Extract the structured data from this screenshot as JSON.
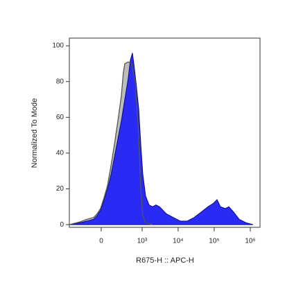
{
  "chart_data": {
    "type": "histogram-overlay",
    "xlabel": "R675-H :: APC-H",
    "ylabel": "Normalized To Mode",
    "xlim": [
      -557,
      1860000
    ],
    "ylim": [
      -1.5,
      104.3
    ],
    "xticks": [
      0,
      {
        "value": 1000,
        "label": "10³"
      },
      {
        "value": 10000,
        "label": "10⁴"
      },
      {
        "value": 100000,
        "label": "10⁵"
      },
      {
        "value": 1000000,
        "label": "10⁶"
      }
    ],
    "yticks": [
      0,
      20,
      40,
      60,
      80,
      100
    ],
    "series": [
      {
        "color": "#bdbdbd",
        "line_color": "#555555",
        "x": [
          -557,
          -273,
          -158,
          -75,
          -40,
          -6.5,
          26,
          61,
          98,
          140,
          188,
          246,
          285,
          317,
          403,
          508,
          638,
          800,
          914,
          1046,
          1252,
          1951
        ],
        "values": [
          0,
          1.5,
          3,
          4,
          6,
          9,
          15,
          22,
          33,
          45,
          58,
          72,
          85,
          90,
          91,
          90,
          80,
          50,
          20,
          5,
          1,
          0
        ]
      },
      {
        "color": "#2a2af5",
        "line_color": "#0a0a8a",
        "x": [
          -557,
          -273,
          -158,
          -75,
          -40,
          -6.5,
          26,
          61,
          98,
          140,
          188,
          246,
          317,
          403,
          463,
          531,
          583,
          667,
          800,
          914,
          1046,
          1252,
          1561,
          1951,
          2437,
          3045,
          4740,
          7380,
          11470,
          17870,
          27830,
          43300,
          67400,
          96000,
          119900,
          149500,
          203700,
          254200,
          346800,
          494200,
          768400,
          1197000
        ],
        "values": [
          0,
          1,
          2,
          3,
          5,
          8,
          14,
          20,
          28,
          38,
          48,
          58,
          70,
          82,
          92,
          96,
          90,
          80,
          65,
          45,
          28,
          16,
          11,
          10,
          11,
          10,
          6,
          4,
          2,
          2,
          4,
          7,
          10,
          12,
          14,
          10,
          9,
          10,
          7,
          3,
          1,
          0
        ]
      }
    ]
  }
}
